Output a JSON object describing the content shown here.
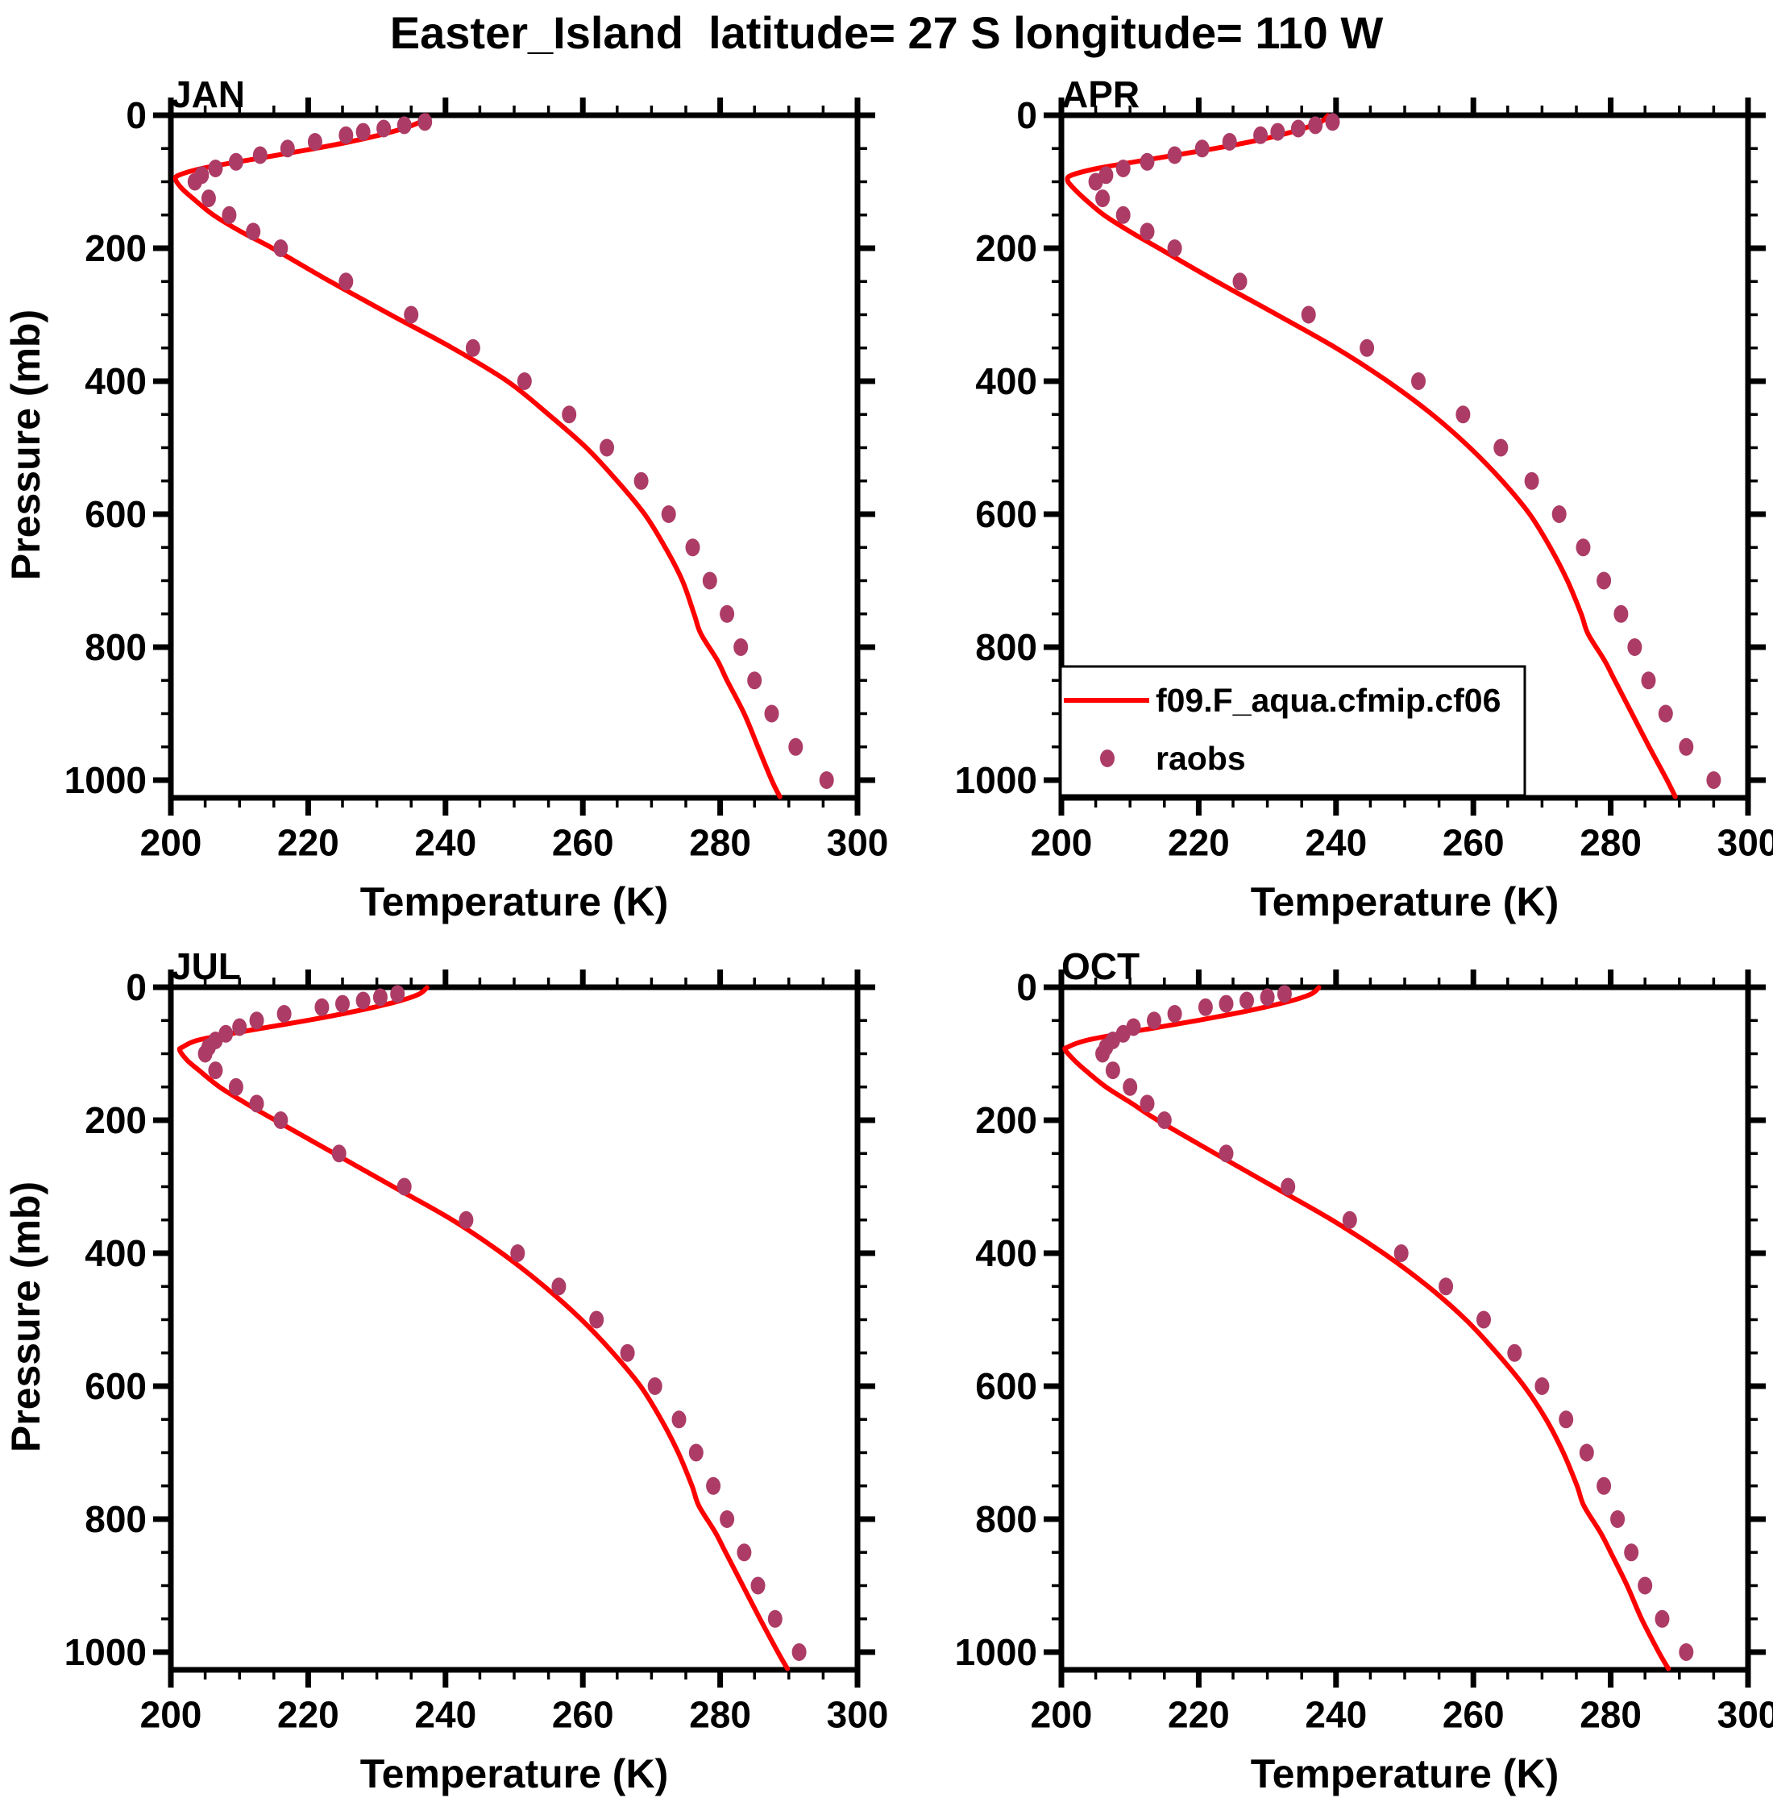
{
  "title": "Easter_Island  latitude= 27 S longitude= 110 W",
  "colors": {
    "background": "#FFFFFF",
    "axis": "#000000",
    "model_line": "#FF0000",
    "obs_dot": "#AC3C66"
  },
  "axes": {
    "x": {
      "label": "Temperature (K)",
      "min": 200,
      "max": 300,
      "major_ticks": [
        200,
        220,
        240,
        260,
        280,
        300
      ],
      "minor_step": 5
    },
    "y": {
      "label": "Pressure (mb)",
      "min": 0,
      "max": 1027,
      "inverted": true,
      "major_ticks": [
        0,
        200,
        400,
        600,
        800,
        1000
      ],
      "minor_step": 50
    }
  },
  "legend": {
    "location": "inside APR panel, bottom-left",
    "entries": [
      {
        "label": "f09.F_aqua.cfmip.cf06",
        "type": "line"
      },
      {
        "label": "raobs",
        "type": "dot"
      }
    ]
  },
  "chart_data": [
    {
      "type": "line",
      "title": "JAN",
      "xlabel": "Temperature (K)",
      "ylabel": "Pressure (mb)",
      "xlim": [
        200,
        300
      ],
      "ylim": [
        1027,
        0
      ],
      "series": [
        {
          "name": "f09.F_aqua.cfmip.cf06",
          "style": "line",
          "points_pT": [
            [
              0.5,
              237.3
            ],
            [
              10,
              236.3
            ],
            [
              20,
              233.8
            ],
            [
              30,
              230.3
            ],
            [
              40,
              226.0
            ],
            [
              50,
              221.0
            ],
            [
              60,
              215.5
            ],
            [
              70,
              209.8
            ],
            [
              80,
              204.5
            ],
            [
              90,
              201.2
            ],
            [
              97,
              200.7
            ],
            [
              110,
              201.6
            ],
            [
              125,
              203.2
            ],
            [
              150,
              206.2
            ],
            [
              175,
              210.2
            ],
            [
              200,
              214.8
            ],
            [
              250,
              223.2
            ],
            [
              300,
              232.0
            ],
            [
              350,
              241.0
            ],
            [
              400,
              249.0
            ],
            [
              450,
              255.0
            ],
            [
              500,
              260.5
            ],
            [
              550,
              265.0
            ],
            [
              600,
              269.0
            ],
            [
              650,
              272.0
            ],
            [
              700,
              274.5
            ],
            [
              750,
              276.2
            ],
            [
              780,
              277.2
            ],
            [
              820,
              279.6
            ],
            [
              850,
              281.0
            ],
            [
              900,
              283.5
            ],
            [
              950,
              285.5
            ],
            [
              1000,
              287.5
            ],
            [
              1025,
              288.7
            ]
          ]
        },
        {
          "name": "raobs",
          "style": "scatter",
          "pressure_mb": [
            10,
            15,
            20,
            25,
            30,
            40,
            50,
            60,
            70,
            80,
            90,
            100,
            125,
            150,
            175,
            200,
            250,
            300,
            350,
            400,
            450,
            500,
            550,
            600,
            650,
            700,
            750,
            800,
            850,
            900,
            950,
            1000
          ],
          "temperature_K": [
            237.0,
            234.0,
            231.0,
            228.0,
            225.5,
            221.0,
            217.0,
            213.0,
            209.5,
            206.5,
            204.5,
            203.5,
            205.5,
            208.5,
            212.0,
            216.0,
            225.5,
            235.0,
            244.0,
            251.5,
            258.0,
            263.5,
            268.5,
            272.5,
            276.0,
            278.5,
            281.0,
            283.0,
            285.0,
            287.5,
            291.0,
            295.5
          ]
        }
      ]
    },
    {
      "type": "line",
      "title": "APR",
      "xlabel": "Temperature (K)",
      "ylabel": "Pressure (mb)",
      "xlim": [
        200,
        300
      ],
      "ylim": [
        1027,
        0
      ],
      "series": [
        {
          "name": "f09.F_aqua.cfmip.cf06",
          "style": "line",
          "points_pT": [
            [
              0.5,
              238.8
            ],
            [
              10,
              237.8
            ],
            [
              20,
              235.2
            ],
            [
              30,
              231.8
            ],
            [
              40,
              227.5
            ],
            [
              50,
              222.3
            ],
            [
              60,
              216.6
            ],
            [
              70,
              210.7
            ],
            [
              80,
              205.2
            ],
            [
              90,
              201.5
            ],
            [
              98,
              200.9
            ],
            [
              110,
              201.8
            ],
            [
              125,
              203.3
            ],
            [
              150,
              206.2
            ],
            [
              175,
              210.0
            ],
            [
              200,
              214.2
            ],
            [
              250,
              222.6
            ],
            [
              300,
              231.4
            ],
            [
              350,
              240.0
            ],
            [
              400,
              247.5
            ],
            [
              450,
              254.0
            ],
            [
              500,
              259.5
            ],
            [
              550,
              264.2
            ],
            [
              600,
              268.2
            ],
            [
              650,
              271.2
            ],
            [
              700,
              273.7
            ],
            [
              750,
              275.7
            ],
            [
              780,
              276.7
            ],
            [
              820,
              279.1
            ],
            [
              850,
              280.6
            ],
            [
              900,
              283.1
            ],
            [
              950,
              285.6
            ],
            [
              1000,
              288.2
            ],
            [
              1025,
              289.4
            ]
          ]
        },
        {
          "name": "raobs",
          "style": "scatter",
          "pressure_mb": [
            10,
            15,
            20,
            25,
            30,
            40,
            50,
            60,
            70,
            80,
            90,
            100,
            125,
            150,
            175,
            200,
            250,
            300,
            350,
            400,
            450,
            500,
            550,
            600,
            650,
            700,
            750,
            800,
            850,
            900,
            950,
            1000
          ],
          "temperature_K": [
            239.5,
            237.0,
            234.5,
            231.5,
            229.0,
            224.5,
            220.5,
            216.5,
            212.5,
            209.0,
            206.5,
            205.0,
            206.0,
            209.0,
            212.5,
            216.5,
            226.0,
            236.0,
            244.5,
            252.0,
            258.5,
            264.0,
            268.5,
            272.5,
            276.0,
            279.0,
            281.5,
            283.5,
            285.5,
            288.0,
            291.0,
            295.0
          ]
        }
      ]
    },
    {
      "type": "line",
      "title": "JUL",
      "xlabel": "Temperature (K)",
      "ylabel": "Pressure (mb)",
      "xlim": [
        200,
        300
      ],
      "ylim": [
        1027,
        0
      ],
      "series": [
        {
          "name": "f09.F_aqua.cfmip.cf06",
          "style": "line",
          "points_pT": [
            [
              0.5,
              237.3
            ],
            [
              10,
              236.2
            ],
            [
              20,
              233.5
            ],
            [
              30,
              229.6
            ],
            [
              40,
              225.0
            ],
            [
              50,
              219.8
            ],
            [
              60,
              214.2
            ],
            [
              70,
              208.6
            ],
            [
              80,
              203.8
            ],
            [
              90,
              201.7
            ],
            [
              95,
              201.3
            ],
            [
              110,
              202.4
            ],
            [
              125,
              204.1
            ],
            [
              150,
              207.1
            ],
            [
              175,
              211.0
            ],
            [
              200,
              215.2
            ],
            [
              250,
              223.8
            ],
            [
              300,
              232.4
            ],
            [
              350,
              241.0
            ],
            [
              400,
              248.2
            ],
            [
              450,
              254.4
            ],
            [
              500,
              259.8
            ],
            [
              550,
              264.4
            ],
            [
              600,
              268.4
            ],
            [
              650,
              271.4
            ],
            [
              700,
              273.9
            ],
            [
              750,
              275.9
            ],
            [
              780,
              276.9
            ],
            [
              820,
              279.3
            ],
            [
              850,
              280.8
            ],
            [
              900,
              283.3
            ],
            [
              950,
              285.8
            ],
            [
              1000,
              288.4
            ],
            [
              1025,
              289.8
            ]
          ]
        },
        {
          "name": "raobs",
          "style": "scatter",
          "pressure_mb": [
            10,
            15,
            20,
            25,
            30,
            40,
            50,
            60,
            70,
            80,
            90,
            100,
            125,
            150,
            175,
            200,
            250,
            300,
            350,
            400,
            450,
            500,
            550,
            600,
            650,
            700,
            750,
            800,
            850,
            900,
            950,
            1000
          ],
          "temperature_K": [
            233.0,
            230.5,
            228.0,
            225.0,
            222.0,
            216.5,
            212.5,
            210.0,
            208.0,
            206.5,
            205.5,
            205.0,
            206.5,
            209.5,
            212.5,
            216.0,
            224.5,
            234.0,
            243.0,
            250.5,
            256.5,
            262.0,
            266.5,
            270.5,
            274.0,
            276.5,
            279.0,
            281.0,
            283.5,
            285.5,
            288.0,
            291.5
          ]
        }
      ]
    },
    {
      "type": "line",
      "title": "OCT",
      "xlabel": "Temperature (K)",
      "ylabel": "Pressure (mb)",
      "xlim": [
        200,
        300
      ],
      "ylim": [
        1027,
        0
      ],
      "series": [
        {
          "name": "f09.F_aqua.cfmip.cf06",
          "style": "line",
          "points_pT": [
            [
              0.5,
              237.5
            ],
            [
              10,
              236.4
            ],
            [
              20,
              233.6
            ],
            [
              30,
              229.6
            ],
            [
              40,
              225.0
            ],
            [
              50,
              219.8
            ],
            [
              60,
              214.2
            ],
            [
              70,
              208.6
            ],
            [
              80,
              203.6
            ],
            [
              90,
              200.9
            ],
            [
              95,
              200.6
            ],
            [
              110,
              201.9
            ],
            [
              125,
              203.5
            ],
            [
              150,
              206.5
            ],
            [
              175,
              210.3
            ],
            [
              200,
              214.0
            ],
            [
              250,
              222.4
            ],
            [
              300,
              230.9
            ],
            [
              350,
              239.4
            ],
            [
              400,
              246.9
            ],
            [
              450,
              253.4
            ],
            [
              500,
              258.9
            ],
            [
              550,
              263.4
            ],
            [
              600,
              267.4
            ],
            [
              650,
              270.6
            ],
            [
              700,
              273.1
            ],
            [
              750,
              275.1
            ],
            [
              780,
              276.1
            ],
            [
              820,
              278.5
            ],
            [
              850,
              280.0
            ],
            [
              900,
              282.4
            ],
            [
              950,
              284.5
            ],
            [
              1000,
              287.0
            ],
            [
              1025,
              288.4
            ]
          ]
        },
        {
          "name": "raobs",
          "style": "scatter",
          "pressure_mb": [
            10,
            15,
            20,
            25,
            30,
            40,
            50,
            60,
            70,
            80,
            90,
            100,
            125,
            150,
            175,
            200,
            250,
            300,
            350,
            400,
            450,
            500,
            550,
            600,
            650,
            700,
            750,
            800,
            850,
            900,
            950,
            1000
          ],
          "temperature_K": [
            232.5,
            230.0,
            227.0,
            224.0,
            221.0,
            216.5,
            213.5,
            210.5,
            209.0,
            207.5,
            206.5,
            206.0,
            207.5,
            210.0,
            212.5,
            215.0,
            224.0,
            233.0,
            242.0,
            249.5,
            256.0,
            261.5,
            266.0,
            270.0,
            273.5,
            276.5,
            279.0,
            281.0,
            283.0,
            285.0,
            287.5,
            291.0
          ]
        }
      ]
    }
  ]
}
